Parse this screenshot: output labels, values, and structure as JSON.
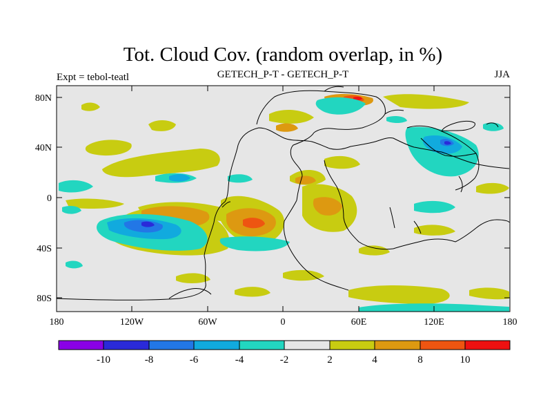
{
  "title": "Tot. Cloud Cov. (random overlap, in %)",
  "subtitle_left": "Expt = tebol-teatl",
  "subtitle_center": "GETECH_P-T - GETECH_P-T",
  "subtitle_right": "JJA",
  "map": {
    "background_color": "#e6e6e6",
    "lat_ticks": [
      "80N",
      "40N",
      "0",
      "40S",
      "80S"
    ],
    "lon_ticks": [
      "180",
      "120W",
      "60W",
      "0",
      "60E",
      "120E",
      "180"
    ]
  },
  "colorbar": {
    "colors": [
      "#8a00e6",
      "#2a2ad9",
      "#2277e6",
      "#11aade",
      "#22d6c0",
      "#e6e6e6",
      "#c8cc11",
      "#dd9911",
      "#ee5511",
      "#ee1111"
    ],
    "labels": [
      "-10",
      "-8",
      "-6",
      "-4",
      "-2",
      "2",
      "4",
      "8",
      "10"
    ]
  }
}
